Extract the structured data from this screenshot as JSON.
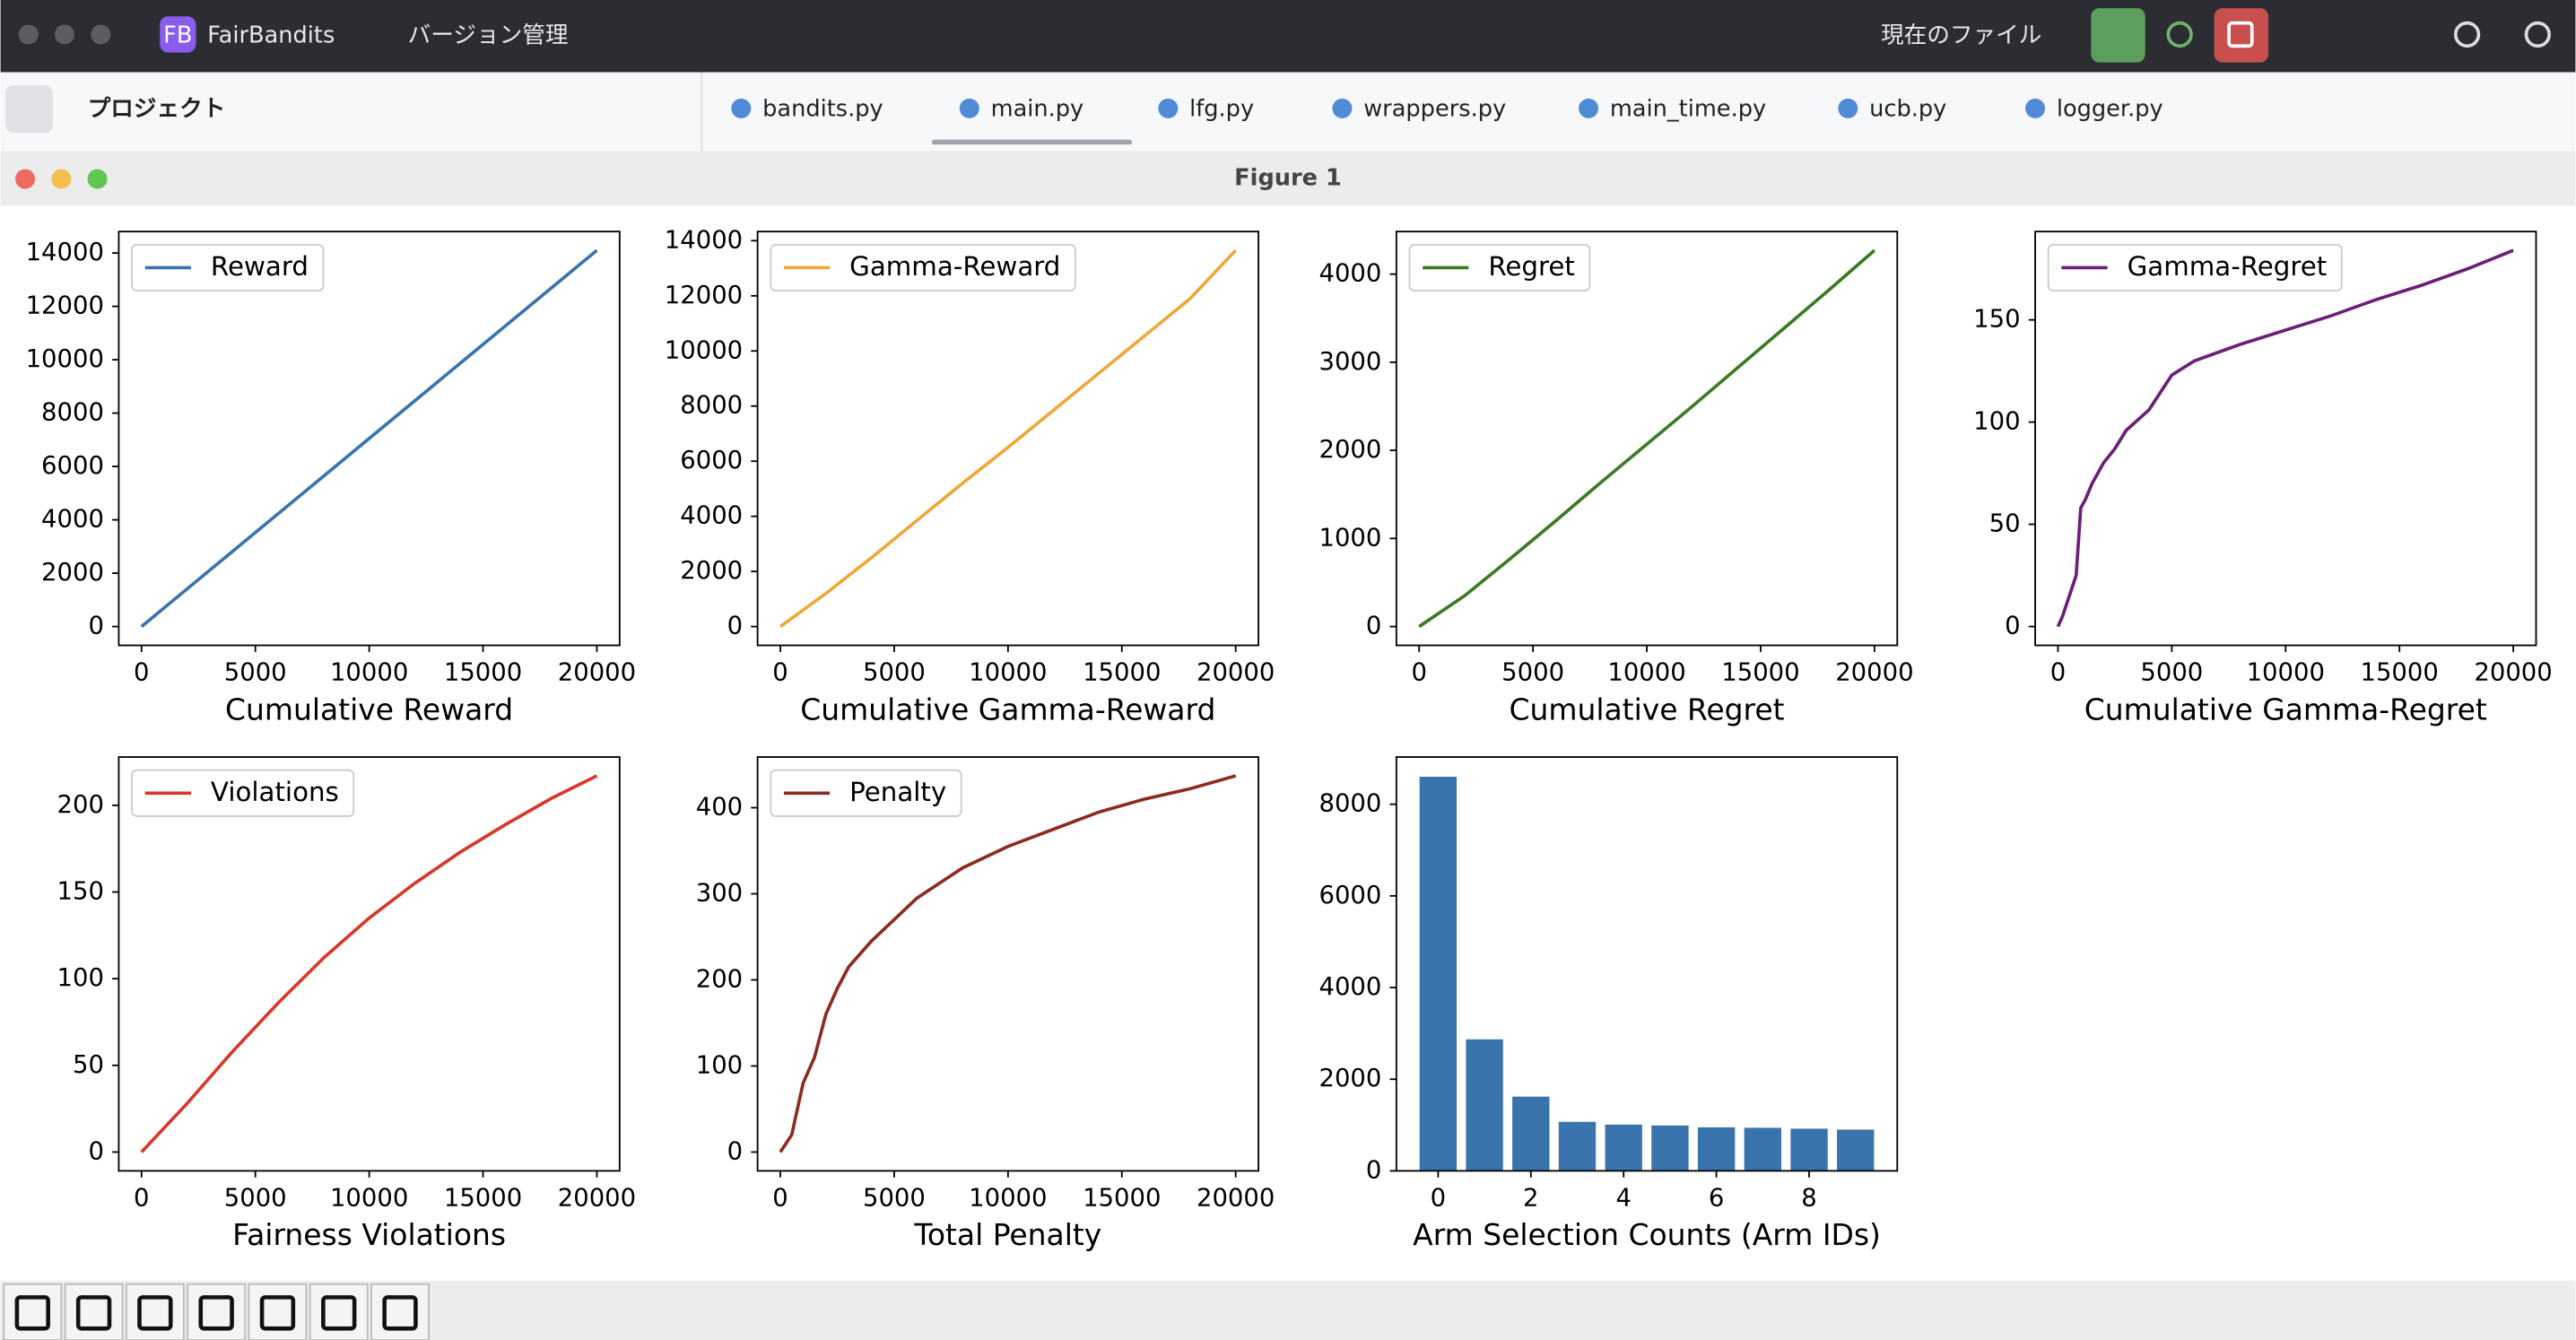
{
  "ide": {
    "app_badge": "FB",
    "app": "FairBandits",
    "vcs": "バージョン管理",
    "current_file": "現在のファイル",
    "project": "プロジェクト",
    "tabs": [
      "bandits.py",
      "main.py",
      "lfg.py",
      "wrappers.py",
      "main_time.py",
      "ucb.py",
      "logger.py"
    ]
  },
  "figure_title": "Figure 1",
  "chart_data": [
    {
      "type": "line",
      "xlabel": "Cumulative Reward",
      "x": [
        0,
        2000,
        4000,
        6000,
        8000,
        10000,
        12000,
        14000,
        16000,
        18000,
        20000
      ],
      "series": [
        {
          "name": "Reward",
          "color": "#3a74ad",
          "values": [
            0,
            1410,
            2820,
            4230,
            5640,
            7050,
            8460,
            9870,
            11280,
            12690,
            14100
          ]
        }
      ],
      "xlim": [
        -1000,
        21000
      ],
      "ylim": [
        -705,
        14805
      ],
      "xticks": [
        0,
        5000,
        10000,
        15000,
        20000
      ],
      "yticks": [
        0,
        2000,
        4000,
        6000,
        8000,
        10000,
        12000,
        14000
      ],
      "legend": "upper left"
    },
    {
      "type": "line",
      "xlabel": "Cumulative Gamma-Reward",
      "x": [
        0,
        2000,
        4000,
        6000,
        8000,
        10000,
        12000,
        14000,
        16000,
        18000,
        20000
      ],
      "series": [
        {
          "name": "Gamma-Reward",
          "color": "#eea83a",
          "values": [
            0,
            1200,
            2500,
            3850,
            5200,
            6500,
            7850,
            9200,
            10550,
            11900,
            13650
          ]
        }
      ],
      "xlim": [
        -1000,
        21000
      ],
      "ylim": [
        -682,
        14332
      ],
      "xticks": [
        0,
        5000,
        10000,
        15000,
        20000
      ],
      "yticks": [
        0,
        2000,
        4000,
        6000,
        8000,
        10000,
        12000,
        14000
      ],
      "legend": "upper left"
    },
    {
      "type": "line",
      "xlabel": "Cumulative Regret",
      "x": [
        0,
        2000,
        4000,
        6000,
        8000,
        10000,
        12000,
        14000,
        16000,
        18000,
        20000
      ],
      "series": [
        {
          "name": "Regret",
          "color": "#3c7a24",
          "values": [
            0,
            350,
            770,
            1200,
            1640,
            2070,
            2500,
            2940,
            3380,
            3820,
            4270
          ]
        }
      ],
      "xlim": [
        -1000,
        21000
      ],
      "ylim": [
        -213.5,
        4483.5
      ],
      "xticks": [
        0,
        5000,
        10000,
        15000,
        20000
      ],
      "yticks": [
        0,
        1000,
        2000,
        3000,
        4000
      ],
      "legend": "upper left"
    },
    {
      "type": "line",
      "xlabel": "Cumulative Gamma-Regret",
      "x": [
        0,
        200,
        500,
        800,
        1000,
        1200,
        1500,
        2000,
        2500,
        3000,
        4000,
        5000,
        6000,
        8000,
        10000,
        12000,
        14000,
        16000,
        18000,
        20000
      ],
      "series": [
        {
          "name": "Gamma-Regret",
          "color": "#6b1f78",
          "values": [
            0,
            5,
            15,
            25,
            58,
            62,
            70,
            80,
            87,
            96,
            106,
            123,
            130,
            138,
            145,
            152,
            160,
            167,
            175,
            184
          ]
        }
      ],
      "xlim": [
        -1000,
        21000
      ],
      "ylim": [
        -9.2,
        193.2
      ],
      "xticks": [
        0,
        5000,
        10000,
        15000,
        20000
      ],
      "yticks": [
        0,
        50,
        100,
        150
      ],
      "legend": "upper left"
    },
    {
      "type": "line",
      "xlabel": "Fairness Violations",
      "x": [
        0,
        2000,
        4000,
        6000,
        8000,
        10000,
        12000,
        14000,
        16000,
        18000,
        20000
      ],
      "series": [
        {
          "name": "Violations",
          "color": "#d6382b",
          "values": [
            0,
            28,
            58,
            86,
            112,
            135,
            155,
            173,
            189,
            204,
            217
          ]
        }
      ],
      "xlim": [
        -1000,
        21000
      ],
      "ylim": [
        -10.85,
        227.85
      ],
      "xticks": [
        0,
        5000,
        10000,
        15000,
        20000
      ],
      "yticks": [
        0,
        50,
        100,
        150,
        200
      ],
      "legend": "upper left"
    },
    {
      "type": "line",
      "xlabel": "Total Penalty",
      "x": [
        0,
        500,
        1000,
        1500,
        2000,
        2500,
        3000,
        4000,
        5000,
        6000,
        8000,
        10000,
        12000,
        14000,
        16000,
        18000,
        20000
      ],
      "series": [
        {
          "name": "Penalty",
          "color": "#8b2c23",
          "values": [
            0,
            20,
            80,
            110,
            160,
            190,
            215,
            245,
            270,
            295,
            330,
            355,
            375,
            395,
            410,
            422,
            437
          ]
        }
      ],
      "xlim": [
        -1000,
        21000
      ],
      "ylim": [
        -21.85,
        458.85
      ],
      "xticks": [
        0,
        5000,
        10000,
        15000,
        20000
      ],
      "yticks": [
        0,
        100,
        200,
        300,
        400
      ],
      "legend": "upper left"
    },
    {
      "type": "bar",
      "xlabel": "Arm Selection Counts (Arm IDs)",
      "x": [
        0,
        1,
        2,
        3,
        4,
        5,
        6,
        7,
        8,
        9
      ],
      "values": [
        8600,
        2870,
        1620,
        1070,
        1010,
        990,
        950,
        940,
        920,
        900
      ],
      "color": "#3a74ad",
      "xlim": [
        -0.9,
        9.9
      ],
      "ylim": [
        0,
        9030
      ],
      "xticks": [
        0,
        2,
        4,
        6,
        8
      ],
      "yticks": [
        0,
        2000,
        4000,
        6000,
        8000
      ]
    }
  ]
}
